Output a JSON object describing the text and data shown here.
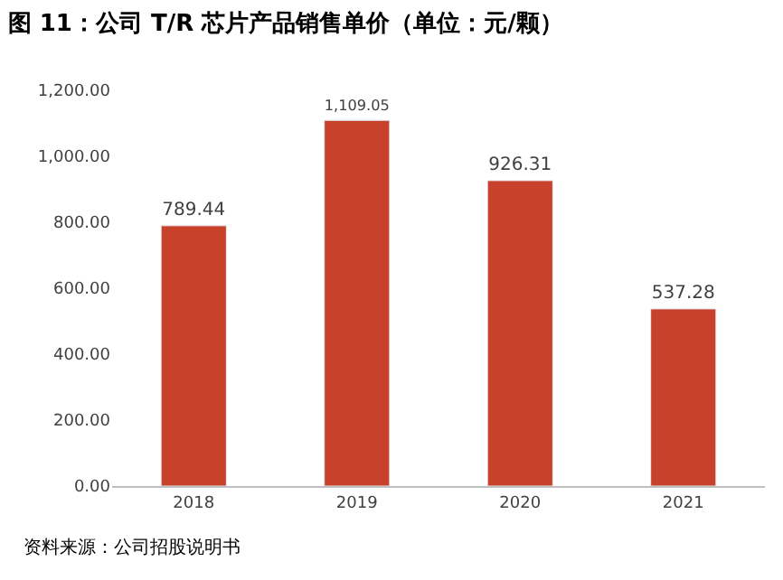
{
  "chart_data": {
    "type": "bar",
    "title": "图 11：公司 T/R 芯片产品销售单价（单位：元/颗）",
    "categories": [
      "2018",
      "2019",
      "2020",
      "2021"
    ],
    "values": [
      789.44,
      1109.05,
      926.31,
      537.28
    ],
    "value_labels": [
      "789.44",
      "1,109.05",
      "926.31",
      "537.28"
    ],
    "color": "#c8412a",
    "ylim": [
      0,
      1200
    ],
    "yticks": [
      {
        "value": 0,
        "label": "0.00"
      },
      {
        "value": 200,
        "label": "200.00"
      },
      {
        "value": 400,
        "label": "400.00"
      },
      {
        "value": 600,
        "label": "600.00"
      },
      {
        "value": 800,
        "label": "800.00"
      },
      {
        "value": 1000,
        "label": "1,000.00"
      },
      {
        "value": 1200,
        "label": "1,200.00"
      }
    ],
    "legend": false,
    "annotations": [
      "资料来源：公司招股说明书"
    ]
  }
}
